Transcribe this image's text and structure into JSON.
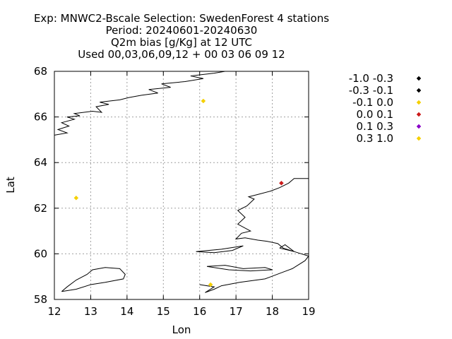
{
  "chart_data": {
    "type": "scatter",
    "title_lines": [
      "Exp: MNWC2-Bscale   Selection: SwedenForest      4 stations",
      "Period: 20240601-20240630",
      "Q2m bias [g/Kg] at  12 UTC",
      "Used 00,03,06,09,12 + 00 03 06 09 12"
    ],
    "xlabel": "Lon",
    "ylabel": "Lat",
    "xlim": [
      12,
      19
    ],
    "ylim": [
      58,
      68
    ],
    "xticks": [
      12,
      13,
      14,
      15,
      16,
      17,
      18,
      19
    ],
    "yticks": [
      58,
      60,
      62,
      64,
      66,
      68
    ],
    "grid": true,
    "legend_position": "right, outside plot",
    "legend": [
      {
        "label": "-1.0 -0.3",
        "color": "#000000"
      },
      {
        "label": "-0.3 -0.1",
        "color": "#000000"
      },
      {
        "label": "-0.1 0.0",
        "color": "#f5d000"
      },
      {
        "label": "0.0 0.1",
        "color": "#cc1a1a"
      },
      {
        "label": "0.1 0.3",
        "color": "#8a00c8"
      },
      {
        "label": "0.3 1.0",
        "color": "#f5d000"
      }
    ],
    "points": [
      {
        "lon": 16.1,
        "lat": 66.7,
        "color": "#f5d000"
      },
      {
        "lon": 12.6,
        "lat": 62.45,
        "color": "#f5d000"
      },
      {
        "lon": 18.25,
        "lat": 63.1,
        "color": "#cc1a1a"
      },
      {
        "lon": 16.3,
        "lat": 58.65,
        "color": "#f5d000"
      }
    ],
    "coastlines": [
      [
        [
          12.0,
          65.2
        ],
        [
          12.35,
          65.3
        ],
        [
          12.1,
          65.45
        ],
        [
          12.4,
          65.6
        ],
        [
          12.2,
          65.75
        ],
        [
          12.55,
          65.9
        ],
        [
          12.35,
          66.0
        ],
        [
          12.7,
          66.05
        ],
        [
          12.55,
          66.15
        ],
        [
          13.05,
          66.25
        ],
        [
          13.3,
          66.2
        ],
        [
          13.15,
          66.45
        ],
        [
          13.5,
          66.55
        ],
        [
          13.25,
          66.65
        ],
        [
          13.8,
          66.75
        ],
        [
          14.05,
          66.85
        ],
        [
          14.4,
          66.95
        ],
        [
          14.85,
          67.05
        ],
        [
          14.6,
          67.2
        ],
        [
          15.2,
          67.3
        ],
        [
          14.95,
          67.45
        ],
        [
          15.6,
          67.55
        ],
        [
          16.1,
          67.68
        ],
        [
          15.75,
          67.8
        ],
        [
          16.4,
          67.92
        ],
        [
          16.7,
          68.0
        ]
      ],
      [
        [
          16.0,
          58.65
        ],
        [
          16.4,
          58.55
        ],
        [
          16.15,
          58.3
        ],
        [
          16.4,
          58.45
        ],
        [
          16.6,
          58.6
        ],
        [
          17.1,
          58.75
        ],
        [
          17.8,
          58.9
        ],
        [
          18.3,
          59.2
        ],
        [
          18.55,
          59.35
        ],
        [
          18.9,
          59.7
        ],
        [
          19.0,
          59.9
        ],
        [
          18.7,
          60.05
        ],
        [
          18.3,
          60.25
        ],
        [
          18.15,
          60.45
        ],
        [
          17.85,
          60.55
        ],
        [
          17.6,
          60.6
        ],
        [
          17.25,
          60.7
        ],
        [
          17.0,
          60.65
        ],
        [
          17.15,
          60.9
        ],
        [
          17.4,
          61.0
        ],
        [
          17.05,
          61.3
        ],
        [
          17.25,
          61.6
        ],
        [
          17.05,
          61.9
        ],
        [
          17.3,
          62.1
        ],
        [
          17.5,
          62.4
        ],
        [
          17.35,
          62.5
        ],
        [
          17.6,
          62.6
        ],
        [
          17.95,
          62.75
        ],
        [
          18.2,
          62.9
        ],
        [
          18.45,
          63.1
        ],
        [
          18.6,
          63.3
        ],
        [
          19.0,
          63.3
        ]
      ],
      [
        [
          16.2,
          59.45
        ],
        [
          16.7,
          59.5
        ],
        [
          17.2,
          59.35
        ],
        [
          17.8,
          59.4
        ],
        [
          18.0,
          59.3
        ],
        [
          17.4,
          59.25
        ],
        [
          16.8,
          59.3
        ],
        [
          16.2,
          59.45
        ]
      ],
      [
        [
          12.2,
          58.35
        ],
        [
          12.6,
          58.45
        ],
        [
          13.0,
          58.65
        ],
        [
          13.4,
          58.75
        ],
        [
          13.9,
          58.9
        ],
        [
          13.95,
          59.1
        ],
        [
          13.8,
          59.35
        ],
        [
          13.4,
          59.4
        ],
        [
          13.05,
          59.3
        ],
        [
          12.9,
          59.1
        ],
        [
          12.6,
          58.85
        ],
        [
          12.35,
          58.55
        ],
        [
          12.2,
          58.35
        ]
      ],
      [
        [
          15.9,
          60.1
        ],
        [
          16.6,
          60.2
        ],
        [
          17.2,
          60.35
        ],
        [
          16.9,
          60.15
        ],
        [
          16.4,
          60.05
        ],
        [
          15.9,
          60.1
        ]
      ],
      [
        [
          18.2,
          60.25
        ],
        [
          18.6,
          60.1
        ],
        [
          18.35,
          60.4
        ],
        [
          18.2,
          60.25
        ]
      ]
    ]
  }
}
